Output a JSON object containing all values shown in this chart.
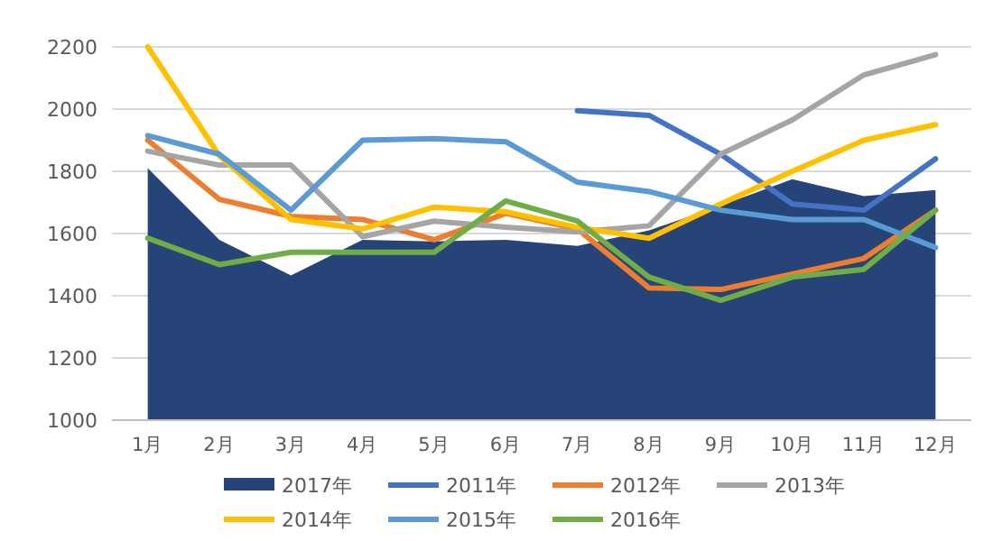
{
  "chart_data": {
    "type": "line",
    "categories": [
      "1月",
      "2月",
      "3月",
      "4月",
      "5月",
      "6月",
      "7月",
      "8月",
      "9月",
      "10月",
      "11月",
      "12月"
    ],
    "series": [
      {
        "name": "2017年",
        "type": "area",
        "color": "#264478",
        "values": [
          1810,
          1580,
          1465,
          1580,
          1575,
          1580,
          1560,
          1610,
          1690,
          1775,
          1720,
          1740
        ]
      },
      {
        "name": "2011年",
        "color": "#4472c4",
        "values": [
          null,
          null,
          null,
          null,
          null,
          null,
          1995,
          1980,
          1855,
          1695,
          1675,
          1840
        ]
      },
      {
        "name": "2012年",
        "color": "#ed7d31",
        "values": [
          1900,
          1710,
          1655,
          1645,
          1580,
          1665,
          1615,
          1425,
          1420,
          1470,
          1520,
          1675
        ]
      },
      {
        "name": "2013年",
        "color": "#a5a5a5",
        "values": [
          1865,
          1820,
          1820,
          1590,
          1640,
          1620,
          1605,
          1625,
          1855,
          1965,
          2110,
          2175
        ]
      },
      {
        "name": "2014年",
        "color": "#ffc000",
        "values": [
          2200,
          1850,
          1645,
          1615,
          1685,
          1670,
          1620,
          1585,
          1695,
          1800,
          1900,
          1950
        ]
      },
      {
        "name": "2015年",
        "color": "#5b9bd5",
        "values": [
          1915,
          1855,
          1675,
          1900,
          1905,
          1895,
          1765,
          1735,
          1675,
          1645,
          1645,
          1555
        ]
      },
      {
        "name": "2016年",
        "color": "#70ad47",
        "values": [
          1585,
          1500,
          1540,
          1540,
          1540,
          1705,
          1640,
          1460,
          1385,
          1460,
          1485,
          1675
        ]
      }
    ],
    "ylim": [
      1000,
      2200
    ],
    "yticks": [
      1000,
      1200,
      1400,
      1600,
      1800,
      2000,
      2200
    ],
    "grid": "y",
    "legend": "bottom"
  }
}
